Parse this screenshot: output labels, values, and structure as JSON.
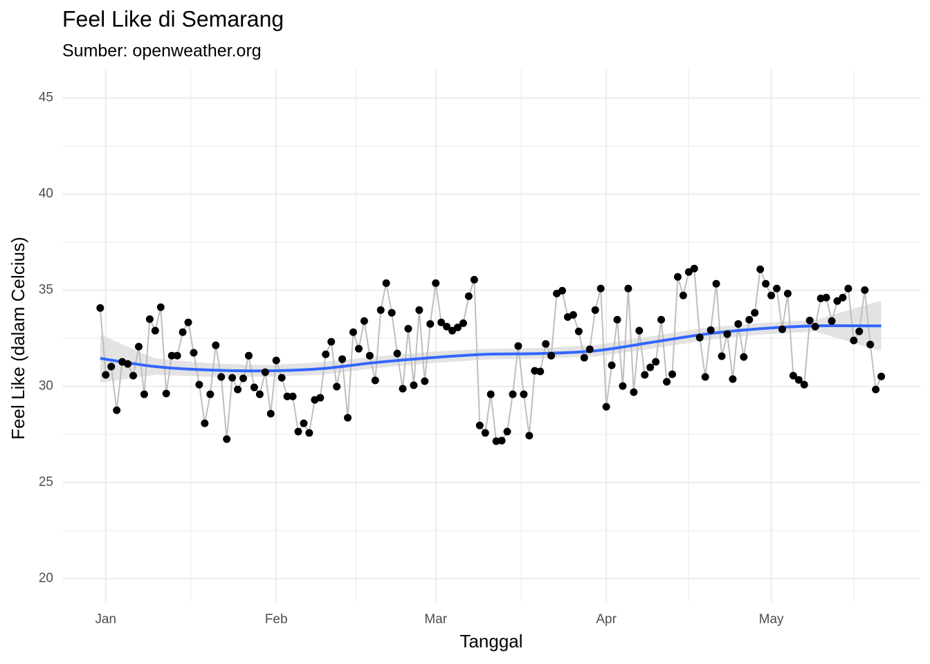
{
  "chart_data": {
    "type": "line",
    "title": "Feel Like di Semarang",
    "subtitle": "Sumber: openweather.org",
    "x_label": "Tanggal",
    "y_label": "Feel Like (dalam Celcius)",
    "x": [
      -1,
      0,
      1,
      2,
      3,
      4,
      5,
      6,
      7,
      8,
      9,
      10,
      11,
      12,
      13,
      14,
      15,
      16,
      17,
      18,
      19,
      20,
      21,
      22,
      23,
      24,
      25,
      26,
      27,
      28,
      29,
      30,
      31,
      32,
      33,
      34,
      35,
      36,
      37,
      38,
      39,
      40,
      41,
      42,
      43,
      44,
      45,
      46,
      47,
      48,
      49,
      50,
      51,
      52,
      53,
      54,
      55,
      56,
      57,
      58,
      59,
      60,
      61,
      62,
      63,
      64,
      65,
      66,
      67,
      68,
      69,
      70,
      71,
      72,
      73,
      74,
      75,
      76,
      77,
      78,
      79,
      80,
      81,
      82,
      83,
      84,
      85,
      86,
      87,
      88,
      89,
      90,
      91,
      92,
      93,
      94,
      95,
      96,
      97,
      98,
      99,
      100,
      101,
      102,
      103,
      104,
      105,
      106,
      107,
      108,
      109,
      110,
      111,
      112,
      113,
      114,
      115,
      116,
      117,
      118,
      119,
      120,
      121,
      122,
      123,
      124,
      125,
      126,
      127,
      128,
      129,
      130,
      131,
      132,
      133,
      134,
      135,
      136,
      137,
      138,
      139,
      140,
      141
    ],
    "values": [
      34.08,
      30.6,
      31.03,
      28.76,
      31.28,
      31.17,
      30.56,
      32.07,
      29.59,
      33.5,
      32.9,
      34.12,
      29.63,
      31.6,
      31.6,
      32.82,
      33.33,
      31.75,
      30.09,
      28.08,
      29.59,
      32.14,
      30.49,
      27.26,
      30.45,
      29.84,
      30.42,
      31.6,
      29.95,
      29.59,
      30.74,
      28.58,
      31.35,
      30.45,
      29.48,
      29.48,
      27.65,
      28.08,
      27.58,
      29.3,
      29.41,
      31.67,
      32.32,
      29.99,
      31.42,
      28.37,
      32.82,
      31.96,
      33.4,
      31.6,
      30.31,
      33.97,
      35.37,
      33.83,
      31.71,
      29.88,
      33.0,
      30.06,
      33.97,
      30.27,
      33.25,
      35.37,
      33.33,
      33.11,
      32.9,
      33.07,
      33.29,
      34.69,
      35.55,
      27.97,
      27.58,
      29.59,
      27.15,
      27.18,
      27.65,
      29.59,
      32.1,
      29.59,
      27.44,
      30.81,
      30.78,
      32.21,
      31.6,
      34.83,
      34.98,
      33.61,
      33.72,
      32.86,
      31.49,
      31.93,
      33.97,
      35.09,
      28.94,
      31.1,
      33.47,
      30.02,
      35.09,
      29.7,
      32.9,
      30.6,
      30.99,
      31.28,
      33.47,
      30.24,
      30.63,
      35.7,
      34.73,
      35.95,
      36.13,
      32.54,
      30.49,
      32.93,
      35.34,
      31.57,
      32.72,
      30.38,
      33.25,
      31.53,
      33.47,
      33.83,
      36.09,
      35.34,
      34.73,
      35.09,
      32.97,
      34.83,
      30.56,
      30.34,
      30.09,
      33.43,
      33.11,
      34.58,
      34.62,
      33.4,
      34.44,
      34.62,
      35.09,
      32.39,
      32.86,
      35.01,
      32.18,
      29.84,
      30.52
    ],
    "point_color": "#000000",
    "line_color": "#bebebe",
    "smooth": {
      "x": [
        -1,
        9,
        19,
        29,
        39,
        49,
        59,
        69,
        79,
        89,
        99,
        109,
        119,
        129,
        139,
        141
      ],
      "values": [
        31.46,
        31.03,
        30.85,
        30.81,
        30.92,
        31.24,
        31.49,
        31.67,
        31.71,
        31.85,
        32.28,
        32.72,
        33.0,
        33.15,
        33.15,
        33.15
      ],
      "lower": [
        30.2,
        30.6,
        30.5,
        30.5,
        30.6,
        30.95,
        31.2,
        31.4,
        31.45,
        31.55,
        31.95,
        32.4,
        32.7,
        32.85,
        32.0,
        31.85
      ],
      "upper": [
        32.7,
        31.45,
        31.2,
        31.1,
        31.25,
        31.55,
        31.8,
        31.95,
        32.0,
        32.15,
        32.6,
        33.05,
        33.3,
        33.45,
        34.3,
        34.45
      ],
      "color": "#3366ff",
      "band_color": "#d9d9d9"
    },
    "xlim": [
      -7.9,
      148.1
    ],
    "ylim": [
      18.8,
      46.5
    ],
    "xticks": [
      {
        "value": 0,
        "label": "Jan"
      },
      {
        "value": 31,
        "label": "Feb"
      },
      {
        "value": 60,
        "label": "Mar"
      },
      {
        "value": 91,
        "label": "Apr"
      },
      {
        "value": 121,
        "label": "May"
      }
    ],
    "yticks": [
      20,
      25,
      30,
      35,
      40,
      45
    ],
    "grid": true
  }
}
